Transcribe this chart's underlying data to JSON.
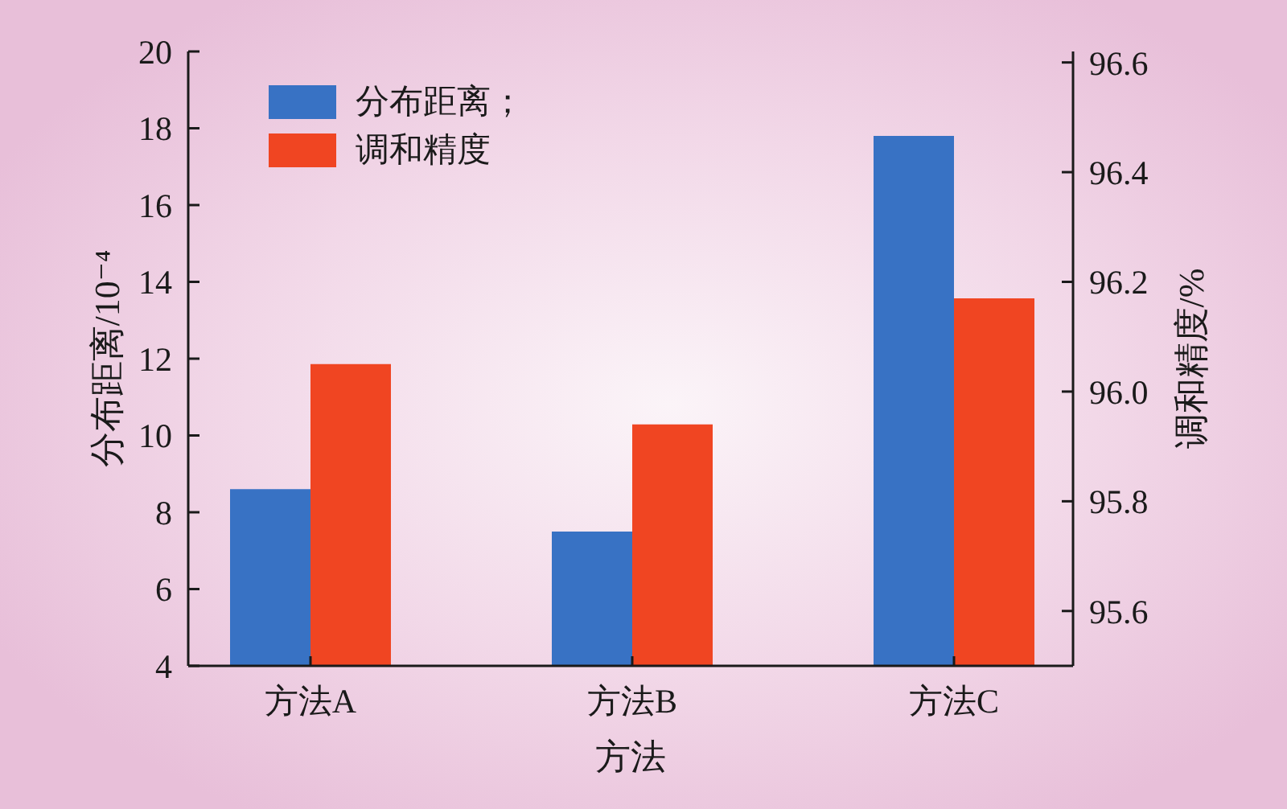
{
  "chart_data": {
    "type": "bar",
    "categories": [
      "方法A",
      "方法B",
      "方法C"
    ],
    "xlabel": "方法",
    "ylabel": "分布距离/10⁻⁴",
    "y2label": "调和精度/%",
    "series": [
      {
        "name": "分布距离；",
        "color": "#3872c4",
        "values": [
          8.6,
          7.5,
          17.8
        ]
      },
      {
        "name": "调和精度",
        "color": "#f04522",
        "values": [
          96.05,
          95.94,
          96.17
        ],
        "axis": "y2"
      }
    ],
    "ylim": [
      4,
      20
    ],
    "yticks": [
      4,
      6,
      8,
      10,
      12,
      14,
      16,
      18,
      20
    ],
    "y2lim": [
      95.5,
      96.62
    ],
    "y2ticks": [
      95.6,
      95.8,
      {
        "value": 96,
        "label": "96.0"
      },
      96.2,
      96.4,
      96.6
    ],
    "legend": "top left"
  }
}
